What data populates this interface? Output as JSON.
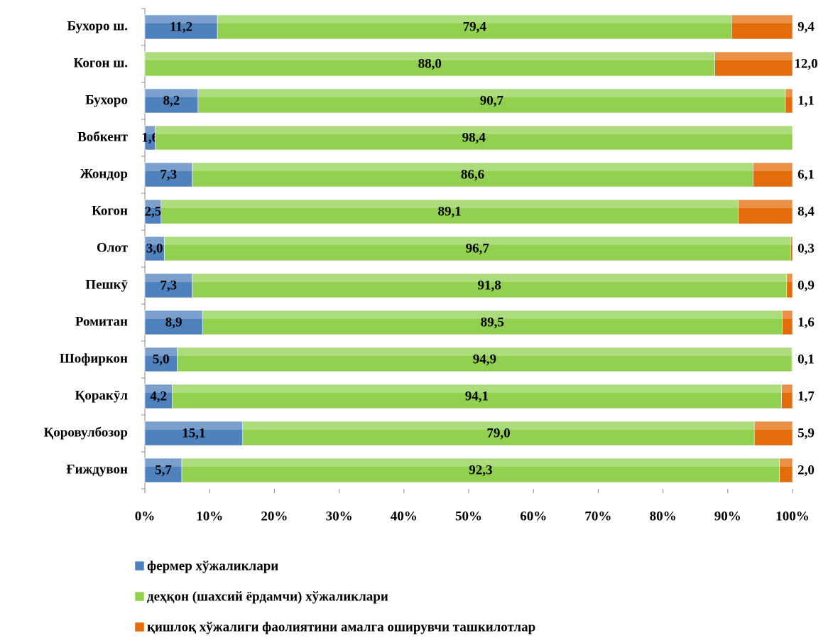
{
  "chart_data": {
    "type": "stacked_bar_horizontal",
    "categories": [
      "Бухоро ш.",
      "Когон ш.",
      "Бухоро",
      "Вобкент",
      "Жондор",
      "Когон",
      "Олот",
      "Пешкӯ",
      "Ромитан",
      "Шофиркон",
      "Қоракӯл",
      "Қоровулбозор",
      "Ғиждувон"
    ],
    "series": [
      {
        "name": "фермер хўжаликлари",
        "color": "#4f81bd",
        "values": [
          11.2,
          null,
          8.2,
          1.6,
          7.3,
          2.5,
          3.0,
          7.3,
          8.9,
          5.0,
          4.2,
          15.1,
          5.7
        ],
        "value_labels": [
          "11,2",
          null,
          "8,2",
          "1,6",
          "7,3",
          "2,5",
          "3,0",
          "7,3",
          "8,9",
          "5,0",
          "4,2",
          "15,1",
          "5,7"
        ]
      },
      {
        "name": "деҳқон (шахсий ёрдамчи) хўжаликлари",
        "color": "#92d050",
        "values": [
          79.4,
          88.0,
          90.7,
          98.4,
          86.6,
          89.1,
          96.7,
          91.8,
          89.5,
          94.9,
          94.1,
          79.0,
          92.3
        ],
        "value_labels": [
          "79,4",
          "88,0",
          "90,7",
          "98,4",
          "86,6",
          "89,1",
          "96,7",
          "91,8",
          "89,5",
          "94,9",
          "94,1",
          "79,0",
          "92,3"
        ]
      },
      {
        "name": "қишлоқ хўжалиги фаолиятини амалга оширувчи ташкилотлар",
        "color": "#e46c0a",
        "values": [
          9.4,
          12.0,
          1.1,
          null,
          6.1,
          8.4,
          0.3,
          0.9,
          1.6,
          0.1,
          1.7,
          5.9,
          2.0
        ],
        "value_labels": [
          "9,4",
          "12,0",
          "1,1",
          null,
          "6,1",
          "8,4",
          "0,3",
          "0,9",
          "1,6",
          "0,1",
          "1,7",
          "5,9",
          "2,0"
        ]
      }
    ],
    "xlim": [
      0,
      100
    ],
    "xticks": [
      {
        "value": 0,
        "label": "0%"
      },
      {
        "value": 10,
        "label": "10%"
      },
      {
        "value": 20,
        "label": "20%"
      },
      {
        "value": 30,
        "label": "30%"
      },
      {
        "value": 40,
        "label": "40%"
      },
      {
        "value": 50,
        "label": "50%"
      },
      {
        "value": 60,
        "label": "60%"
      },
      {
        "value": 70,
        "label": "70%"
      },
      {
        "value": 80,
        "label": "80%"
      },
      {
        "value": 90,
        "label": "90%"
      },
      {
        "value": 100,
        "label": "100%"
      }
    ],
    "legend": "bottom"
  }
}
